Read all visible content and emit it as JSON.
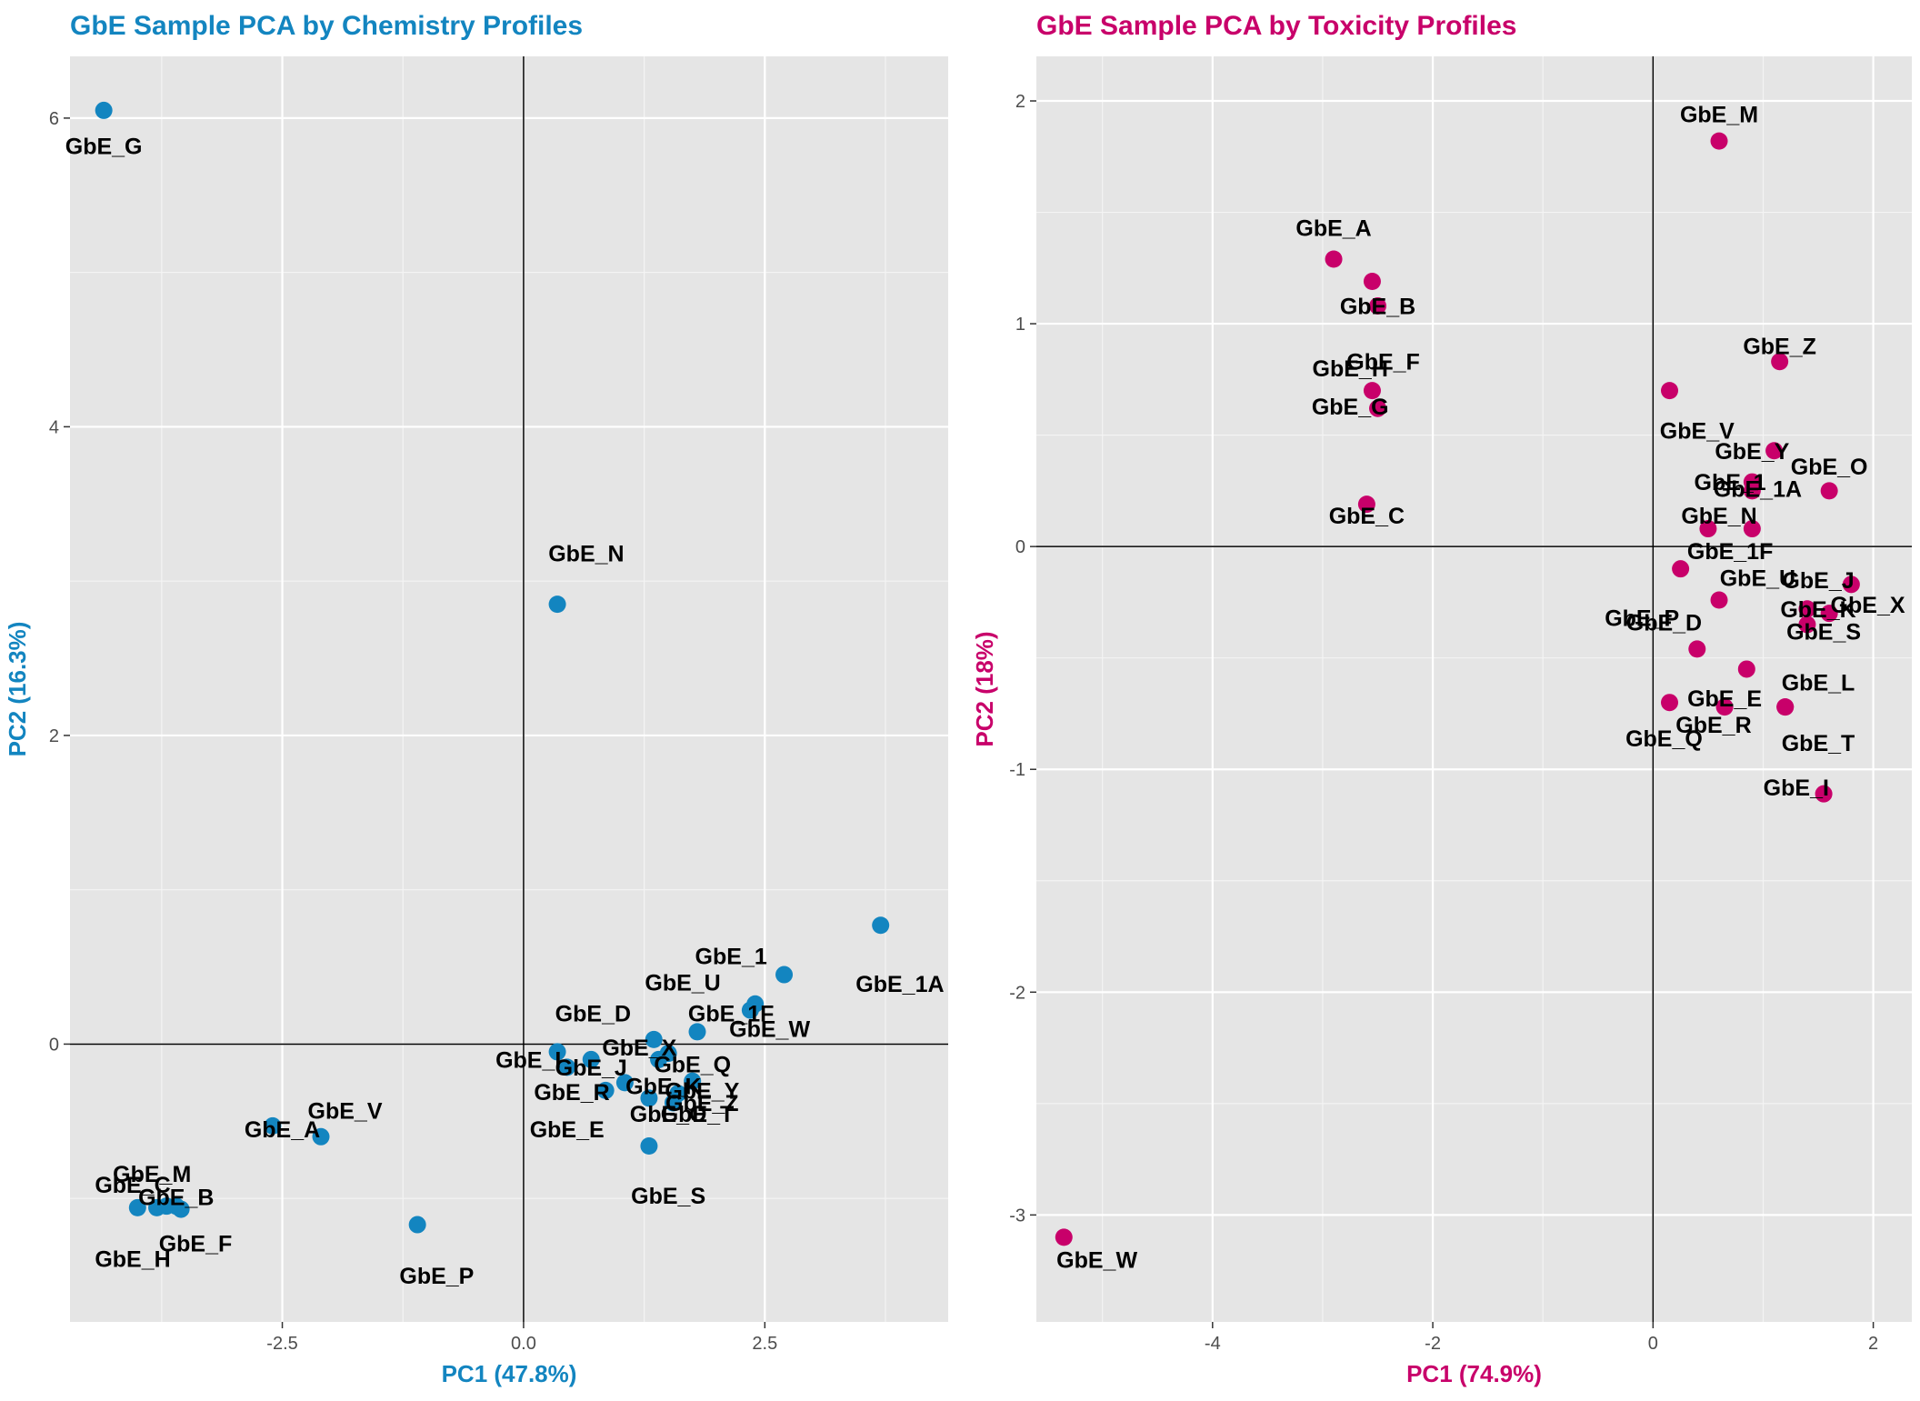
{
  "chart_data": [
    {
      "type": "scatter",
      "title": "GbE Sample PCA by Chemistry Profiles",
      "xlabel": "PC1 (47.8%)",
      "ylabel": "PC2 (16.3%)",
      "color": "#1385c0",
      "xlim": [
        -4.7,
        4.4
      ],
      "ylim": [
        -1.8,
        6.4
      ],
      "xticks": [
        -2.5,
        0.0,
        2.5
      ],
      "xtick_labels": [
        "-2.5",
        "0.0",
        "2.5"
      ],
      "yticks": [
        0,
        2,
        4,
        6
      ],
      "ytick_labels": [
        "0",
        "2",
        "4",
        "6"
      ],
      "grid": true,
      "points": [
        {
          "label": "GbE_G",
          "x": -4.35,
          "y": 6.05,
          "lx": -4.35,
          "ly": 5.82
        },
        {
          "label": "GbE_N",
          "x": 0.35,
          "y": 2.85,
          "lx": 0.65,
          "ly": 3.18
        },
        {
          "label": "GbE_1A",
          "x": 3.7,
          "y": 0.77,
          "lx": 3.9,
          "ly": 0.39
        },
        {
          "label": "GbE_1",
          "x": 2.7,
          "y": 0.45,
          "lx": 2.15,
          "ly": 0.57
        },
        {
          "label": "GbE_U",
          "x": 2.4,
          "y": 0.26,
          "lx": 1.65,
          "ly": 0.4
        },
        {
          "label": "GbE_1F",
          "x": 2.35,
          "y": 0.22,
          "lx": 2.15,
          "ly": 0.2
        },
        {
          "label": "GbE_W",
          "x": 1.8,
          "y": 0.08,
          "lx": 2.55,
          "ly": 0.1
        },
        {
          "label": "GbE_D",
          "x": 1.35,
          "y": 0.03,
          "lx": 0.72,
          "ly": 0.2
        },
        {
          "label": "GbE_X",
          "x": 1.5,
          "y": -0.06,
          "lx": 1.2,
          "ly": -0.02
        },
        {
          "label": "GbE_Q",
          "x": 1.4,
          "y": -0.1,
          "lx": 1.75,
          "ly": -0.13
        },
        {
          "label": "GbE_I",
          "x": 0.35,
          "y": -0.05,
          "lx": 0.05,
          "ly": -0.1
        },
        {
          "label": "GbE_J",
          "x": 0.7,
          "y": -0.1,
          "lx": 0.7,
          "ly": -0.15
        },
        {
          "label": "GbE_K",
          "x": 1.05,
          "y": -0.25,
          "lx": 1.45,
          "ly": -0.27
        },
        {
          "label": "GbE_R",
          "x": 0.85,
          "y": -0.3,
          "lx": 0.5,
          "ly": -0.31
        },
        {
          "label": "GbE_Y",
          "x": 1.75,
          "y": -0.24,
          "lx": 1.85,
          "ly": -0.3
        },
        {
          "label": "GbE_Z",
          "x": 1.6,
          "y": -0.32,
          "lx": 1.85,
          "ly": -0.38
        },
        {
          "label": "GbE_O",
          "x": 1.3,
          "y": -0.35,
          "lx": 1.5,
          "ly": -0.45
        },
        {
          "label": "GbE_T",
          "x": 1.55,
          "y": -0.38,
          "lx": 1.8,
          "ly": -0.45
        },
        {
          "label": "GbE_E",
          "x": 0.45,
          "y": -0.15,
          "lx": 0.45,
          "ly": -0.55
        },
        {
          "label": "GbE_S",
          "x": 1.3,
          "y": -0.66,
          "lx": 1.5,
          "ly": -0.98
        },
        {
          "label": "GbE_P",
          "x": -1.1,
          "y": -1.17,
          "lx": -0.9,
          "ly": -1.5
        },
        {
          "label": "GbE_V",
          "x": -2.1,
          "y": -0.6,
          "lx": -1.85,
          "ly": -0.43
        },
        {
          "label": "GbE_A",
          "x": -2.6,
          "y": -0.53,
          "lx": -2.5,
          "ly": -0.55
        },
        {
          "label": "GbE_M",
          "x": -3.7,
          "y": -1.05,
          "lx": -3.85,
          "ly": -0.84
        },
        {
          "label": "GbE_C",
          "x": -4.0,
          "y": -1.06,
          "lx": -4.05,
          "ly": -0.91
        },
        {
          "label": "GbE_B",
          "x": -3.6,
          "y": -1.05,
          "lx": -3.6,
          "ly": -0.99
        },
        {
          "label": "GbE_F",
          "x": -3.55,
          "y": -1.07,
          "lx": -3.4,
          "ly": -1.29
        },
        {
          "label": "GbE_H",
          "x": -3.8,
          "y": -1.06,
          "lx": -4.05,
          "ly": -1.39
        }
      ]
    },
    {
      "type": "scatter",
      "title": "GbE Sample PCA by Toxicity Profiles",
      "xlabel": "PC1 (74.9%)",
      "ylabel": "PC2 (18%)",
      "color": "#c8006a",
      "xlim": [
        -5.6,
        2.35
      ],
      "ylim": [
        -3.48,
        2.2
      ],
      "xticks": [
        -4,
        -2,
        0,
        2
      ],
      "xtick_labels": [
        "-4",
        "-2",
        "0",
        "2"
      ],
      "yticks": [
        -3,
        -2,
        -1,
        0,
        1,
        2
      ],
      "ytick_labels": [
        "-3",
        "-2",
        "-1",
        "0",
        "1",
        "2"
      ],
      "grid": true,
      "points": [
        {
          "label": "GbE_M",
          "x": 0.6,
          "y": 1.82,
          "lx": 0.6,
          "ly": 1.94
        },
        {
          "label": "GbE_A",
          "x": -2.9,
          "y": 1.29,
          "lx": -2.9,
          "ly": 1.43
        },
        {
          "label": "GbE_B",
          "x": -2.55,
          "y": 1.19,
          "lx": -2.5,
          "ly": 1.08
        },
        {
          "label": "GbE_H",
          "x": -2.5,
          "y": 1.08,
          "lx": -2.75,
          "ly": 0.8
        },
        {
          "label": "GbE_F",
          "x": -2.55,
          "y": 0.7,
          "lx": -2.45,
          "ly": 0.83
        },
        {
          "label": "GbE_G",
          "x": -2.5,
          "y": 0.62,
          "lx": -2.75,
          "ly": 0.63
        },
        {
          "label": "GbE_C",
          "x": -2.6,
          "y": 0.19,
          "lx": -2.6,
          "ly": 0.14
        },
        {
          "label": "GbE_Z",
          "x": 1.15,
          "y": 0.83,
          "lx": 1.15,
          "ly": 0.9
        },
        {
          "label": "GbE_V",
          "x": 0.15,
          "y": 0.7,
          "lx": 0.4,
          "ly": 0.52
        },
        {
          "label": "GbE_Y",
          "x": 1.1,
          "y": 0.43,
          "lx": 0.9,
          "ly": 0.43
        },
        {
          "label": "GbE_O",
          "x": 1.6,
          "y": 0.25,
          "lx": 1.6,
          "ly": 0.36
        },
        {
          "label": "GbE_1",
          "x": 0.9,
          "y": 0.29,
          "lx": 0.7,
          "ly": 0.29
        },
        {
          "label": "GbE_1A",
          "x": 0.9,
          "y": 0.25,
          "lx": 0.95,
          "ly": 0.26
        },
        {
          "label": "GbE_N",
          "x": 0.5,
          "y": 0.08,
          "lx": 0.6,
          "ly": 0.14
        },
        {
          "label": "GbE_1F",
          "x": 0.25,
          "y": -0.1,
          "lx": 0.7,
          "ly": -0.02
        },
        {
          "label": "GbE_U",
          "x": 0.6,
          "y": -0.24,
          "lx": 0.95,
          "ly": -0.14
        },
        {
          "label": "GbE_J",
          "x": 1.8,
          "y": -0.17,
          "lx": 1.5,
          "ly": -0.15
        },
        {
          "label": "GbE_K",
          "x": 1.4,
          "y": -0.28,
          "lx": 1.5,
          "ly": -0.28
        },
        {
          "label": "GbE_X",
          "x": 1.6,
          "y": -0.3,
          "lx": 1.95,
          "ly": -0.26
        },
        {
          "label": "GbE_S",
          "x": 1.4,
          "y": -0.35,
          "lx": 1.55,
          "ly": -0.38
        },
        {
          "label": "GbE_P",
          "x": 0.9,
          "y": 0.08,
          "lx": -0.1,
          "ly": -0.32
        },
        {
          "label": "GbE_D",
          "x": 0.4,
          "y": -0.46,
          "lx": 0.1,
          "ly": -0.34
        },
        {
          "label": "GbE_L",
          "x": 0.85,
          "y": -0.55,
          "lx": 1.5,
          "ly": -0.61
        },
        {
          "label": "GbE_E",
          "x": 0.65,
          "y": -0.72,
          "lx": 0.65,
          "ly": -0.68
        },
        {
          "label": "GbE_Q",
          "x": 0.15,
          "y": -0.7,
          "lx": 0.1,
          "ly": -0.86
        },
        {
          "label": "GbE_R",
          "x": 1.2,
          "y": -0.72,
          "lx": 0.55,
          "ly": -0.8
        },
        {
          "label": "GbE_T",
          "x": 1.2,
          "y": -0.72,
          "lx": 1.5,
          "ly": -0.88
        },
        {
          "label": "GbE_I",
          "x": 1.55,
          "y": -1.11,
          "lx": 1.3,
          "ly": -1.08
        },
        {
          "label": "GbE_W",
          "x": -5.35,
          "y": -3.1,
          "lx": -5.05,
          "ly": -3.2
        }
      ]
    }
  ]
}
